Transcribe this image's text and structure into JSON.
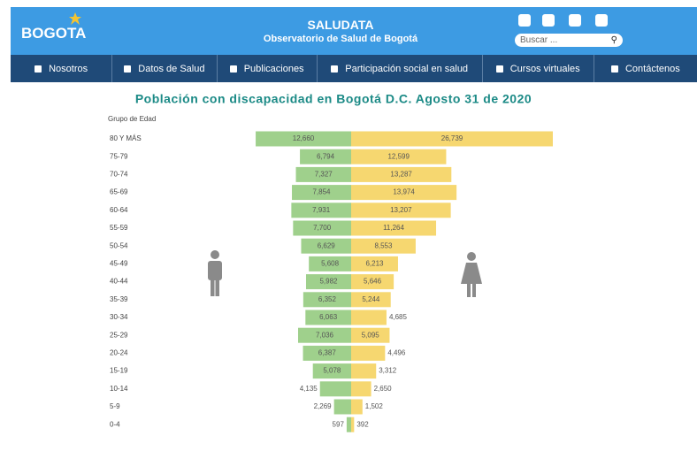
{
  "header": {
    "logo": "BOGOTA",
    "site": "SALUDATA",
    "subtitle": "Observatorio de Salud de Bogotá",
    "search_placeholder": "Buscar ..."
  },
  "nav": [
    "Nosotros",
    "Datos de Salud",
    "Publicaciones",
    "Participación social en salud",
    "Cursos virtuales",
    "Contáctenos"
  ],
  "chart_data": {
    "type": "pyramid",
    "title": "Población con discapacidad en Bogotá D.C. Agosto 31 de 2020",
    "y_label": "Grupo de Edad",
    "categories": [
      "80 Y MÁS",
      "75-79",
      "70-74",
      "65-69",
      "60-64",
      "55-59",
      "50-54",
      "45-49",
      "40-44",
      "35-39",
      "30-34",
      "25-29",
      "20-24",
      "15-19",
      "10-14",
      "5-9",
      "0-4"
    ],
    "series": [
      {
        "color": "#9fd08c",
        "values": [
          12660,
          6794,
          7327,
          7854,
          7931,
          7700,
          6629,
          5608,
          5982,
          6352,
          6063,
          7036,
          6387,
          5078,
          4135,
          2269,
          597
        ],
        "value_labels": [
          "12,660",
          "6,794",
          "7,327",
          "7,854",
          "7,931",
          "7,700",
          "6,629",
          "5,608",
          "5,982",
          "6,352",
          "6,063",
          "7,036",
          "6,387",
          "5,078",
          "4,135",
          "2,269",
          "597"
        ]
      },
      {
        "color": "#f6d770",
        "values": [
          26739,
          12599,
          13287,
          13974,
          13207,
          11264,
          8553,
          6213,
          5646,
          5244,
          4685,
          5095,
          4496,
          3312,
          2650,
          1502,
          392
        ],
        "value_labels": [
          "26,739",
          "12,599",
          "13,287",
          "13,974",
          "13,207",
          "11,264",
          "8,553",
          "6,213",
          "5,646",
          "5,244",
          "4,685",
          "5,095",
          "4,496",
          "3,312",
          "2,650",
          "1,502",
          "392"
        ]
      }
    ]
  }
}
